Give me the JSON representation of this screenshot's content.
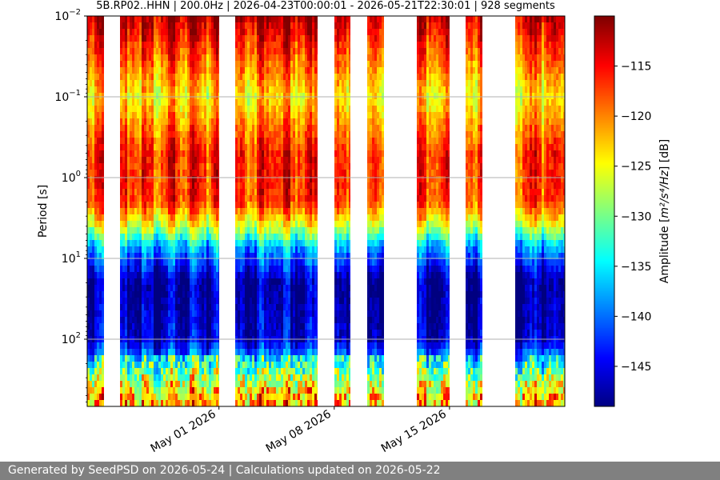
{
  "chart_data": {
    "type": "heatmap",
    "title": "5B.RP02..HHN | 200.0Hz | 2026-04-23T00:00:01 - 2026-05-21T22:30:01 | 928 segments",
    "xlabel": "",
    "ylabel": "Period [s]",
    "yscale": "log",
    "ylim": [
      0.01,
      700
    ],
    "y_inverted": true,
    "grid": "horizontal",
    "x_range": [
      "2026-04-23",
      "2026-05-21"
    ],
    "x_ticks": [
      "May 01 2026",
      "May 08 2026",
      "May 15 2026"
    ],
    "y_ticks": [
      {
        "base": "10",
        "exp": "−2"
      },
      {
        "base": "10",
        "exp": "−1"
      },
      {
        "base": "10",
        "exp": "0"
      },
      {
        "base": "10",
        "exp": "1"
      },
      {
        "base": "10",
        "exp": "2"
      }
    ],
    "colorbar": {
      "label_main": "Amplitude [",
      "label_unit": "m²/s⁴/Hz",
      "label_end": "] [dB]",
      "colormap": "jet",
      "range": [
        -149,
        -110
      ],
      "ticks": [
        "−115",
        "−120",
        "−125",
        "−130",
        "−135",
        "−140",
        "−145"
      ]
    },
    "data_windows": [
      [
        "2026-04-23",
        "2026-04-24"
      ],
      [
        "2026-04-25",
        "2026-05-01"
      ],
      [
        "2026-05-02",
        "2026-05-07"
      ],
      [
        "2026-05-08",
        "2026-05-09"
      ],
      [
        "2026-05-10",
        "2026-05-11"
      ],
      [
        "2026-05-13",
        "2026-05-15"
      ],
      [
        "2026-05-16",
        "2026-05-17"
      ],
      [
        "2026-05-19",
        "2026-05-22"
      ]
    ],
    "amplitude_profile": [
      {
        "period": 0.01,
        "db": -112
      },
      {
        "period": 0.1,
        "db": -124
      },
      {
        "period": 0.5,
        "db": -116
      },
      {
        "period": 2,
        "db": -117
      },
      {
        "period": 4,
        "db": -126
      },
      {
        "period": 7,
        "db": -137
      },
      {
        "period": 20,
        "db": -148
      },
      {
        "period": 100,
        "db": -146
      },
      {
        "period": 200,
        "db": -136
      },
      {
        "period": 500,
        "db": -125
      }
    ]
  },
  "footer": {
    "text": "Generated by SeedPSD on 2026-05-24 | Calculations updated on 2026-05-22"
  }
}
